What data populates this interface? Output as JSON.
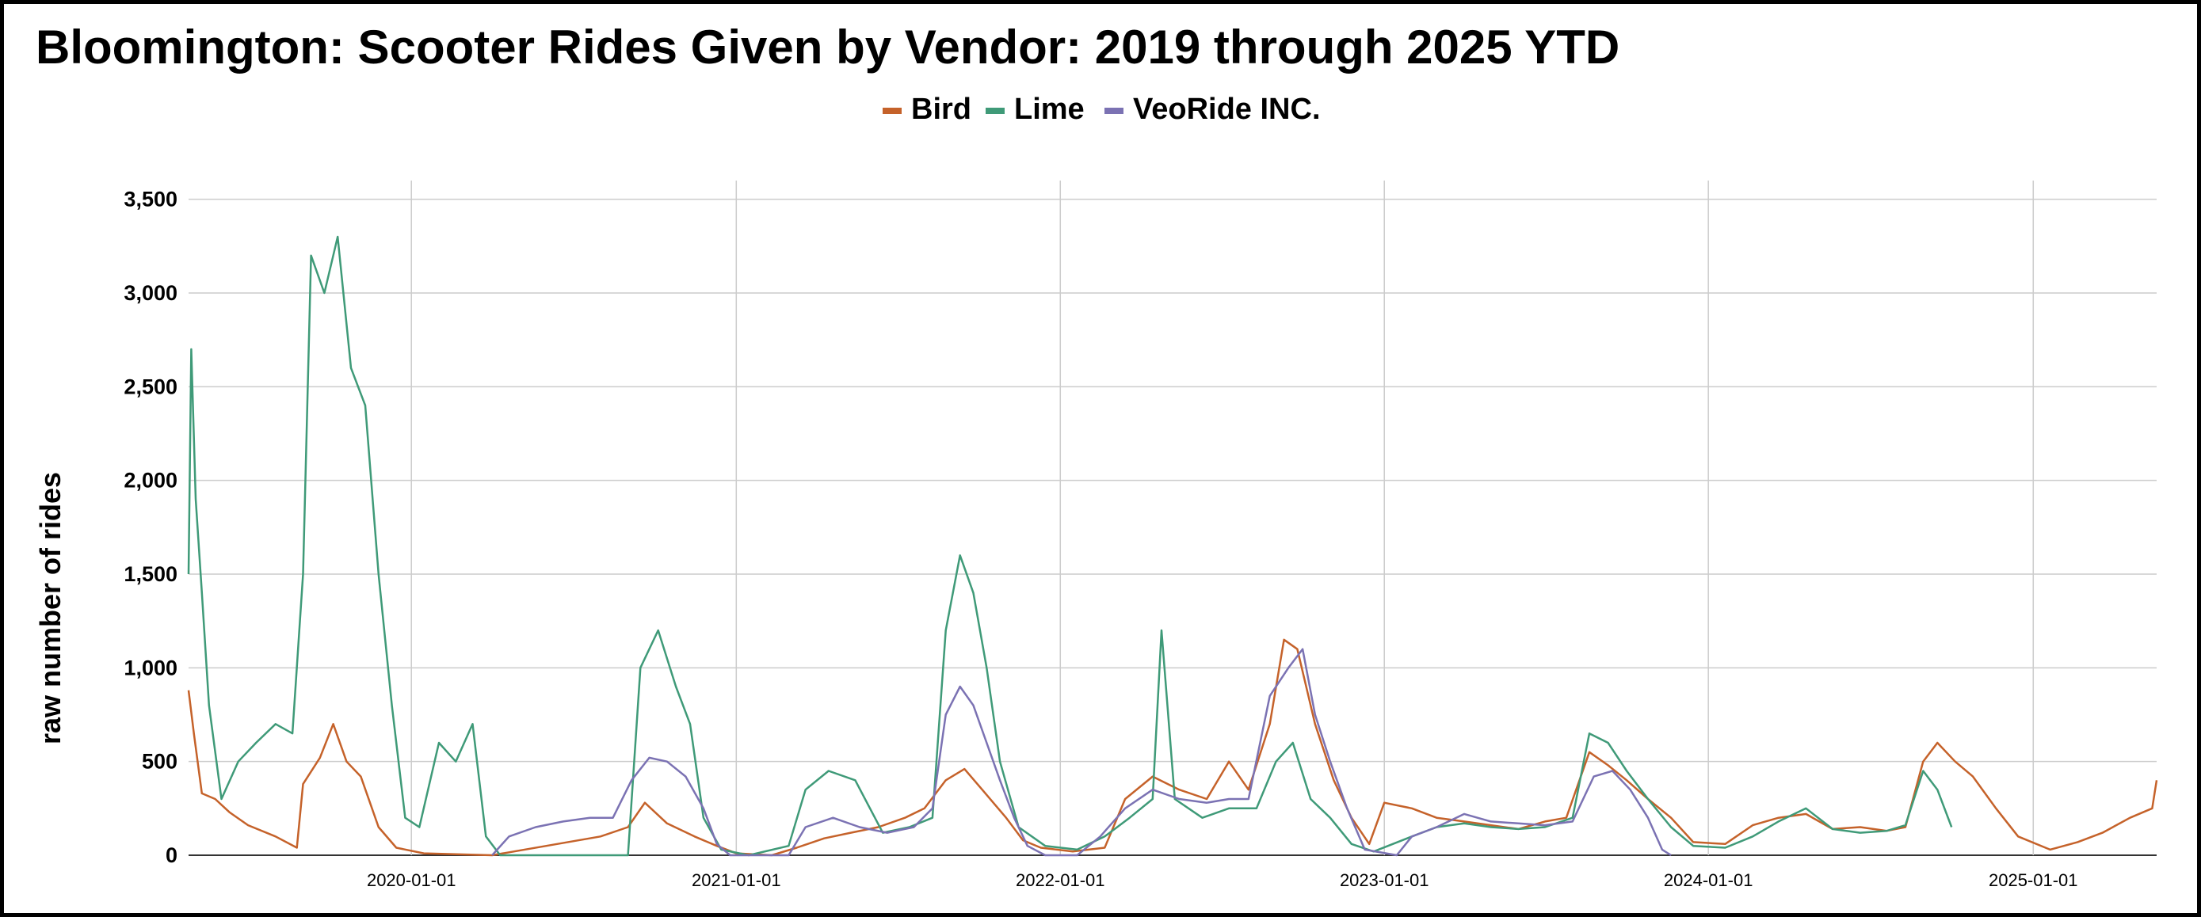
{
  "chart_data": {
    "type": "line",
    "title": "Bloomington: Scooter Rides Given by Vendor: 2019 through 2025 YTD",
    "xlabel": "",
    "ylabel": "raw number of rides",
    "x_tick_labels": [
      "2020-01-01",
      "2021-01-01",
      "2022-01-01",
      "2023-01-01",
      "2024-01-01",
      "2025-01-01"
    ],
    "y_tick_labels": [
      "0",
      "500",
      "1,000",
      "1,500",
      "2,000",
      "2,500",
      "3,000",
      "3,500"
    ],
    "ylim": [
      0,
      3600
    ],
    "xlim": [
      "2019-04-25",
      "2025-05-20"
    ],
    "grid": true,
    "legend_position": "top",
    "series": [
      {
        "name": "Bird",
        "color": "#c5622a",
        "points": [
          [
            "2019-04-25",
            880
          ],
          [
            "2019-05-01",
            650
          ],
          [
            "2019-05-10",
            330
          ],
          [
            "2019-05-25",
            300
          ],
          [
            "2019-06-10",
            230
          ],
          [
            "2019-07-01",
            160
          ],
          [
            "2019-08-01",
            100
          ],
          [
            "2019-08-25",
            40
          ],
          [
            "2019-09-01",
            380
          ],
          [
            "2019-09-20",
            520
          ],
          [
            "2019-10-05",
            700
          ],
          [
            "2019-10-20",
            500
          ],
          [
            "2019-11-05",
            420
          ],
          [
            "2019-11-25",
            150
          ],
          [
            "2019-12-15",
            40
          ],
          [
            "2020-01-15",
            10
          ],
          [
            "2020-04-01",
            0
          ],
          [
            "2020-06-01",
            50
          ],
          [
            "2020-08-01",
            100
          ],
          [
            "2020-09-01",
            150
          ],
          [
            "2020-09-20",
            280
          ],
          [
            "2020-10-15",
            170
          ],
          [
            "2020-11-15",
            100
          ],
          [
            "2020-12-10",
            50
          ],
          [
            "2021-01-01",
            10
          ],
          [
            "2021-02-10",
            0
          ],
          [
            "2021-03-10",
            40
          ],
          [
            "2021-04-10",
            90
          ],
          [
            "2021-05-10",
            120
          ],
          [
            "2021-06-10",
            150
          ],
          [
            "2021-07-10",
            200
          ],
          [
            "2021-08-01",
            250
          ],
          [
            "2021-08-25",
            400
          ],
          [
            "2021-09-15",
            460
          ],
          [
            "2021-10-05",
            350
          ],
          [
            "2021-11-01",
            200
          ],
          [
            "2021-11-20",
            80
          ],
          [
            "2021-12-10",
            40
          ],
          [
            "2022-01-15",
            20
          ],
          [
            "2022-02-20",
            40
          ],
          [
            "2022-03-15",
            300
          ],
          [
            "2022-04-15",
            420
          ],
          [
            "2022-05-15",
            350
          ],
          [
            "2022-06-15",
            300
          ],
          [
            "2022-07-10",
            500
          ],
          [
            "2022-08-01",
            350
          ],
          [
            "2022-08-25",
            700
          ],
          [
            "2022-09-10",
            1150
          ],
          [
            "2022-09-25",
            1100
          ],
          [
            "2022-10-15",
            700
          ],
          [
            "2022-11-05",
            400
          ],
          [
            "2022-11-25",
            200
          ],
          [
            "2022-12-15",
            60
          ],
          [
            "2023-01-01",
            280
          ],
          [
            "2023-02-01",
            250
          ],
          [
            "2023-03-01",
            200
          ],
          [
            "2023-04-01",
            180
          ],
          [
            "2023-05-01",
            160
          ],
          [
            "2023-06-01",
            140
          ],
          [
            "2023-07-01",
            180
          ],
          [
            "2023-07-25",
            200
          ],
          [
            "2023-08-20",
            550
          ],
          [
            "2023-09-10",
            480
          ],
          [
            "2023-10-01",
            400
          ],
          [
            "2023-10-25",
            300
          ],
          [
            "2023-11-20",
            200
          ],
          [
            "2023-12-15",
            70
          ],
          [
            "2024-01-20",
            60
          ],
          [
            "2024-02-20",
            160
          ],
          [
            "2024-03-20",
            200
          ],
          [
            "2024-04-20",
            220
          ],
          [
            "2024-05-20",
            140
          ],
          [
            "2024-06-20",
            150
          ],
          [
            "2024-07-20",
            130
          ],
          [
            "2024-08-10",
            150
          ],
          [
            "2024-08-30",
            500
          ],
          [
            "2024-09-15",
            600
          ],
          [
            "2024-10-05",
            500
          ],
          [
            "2024-10-25",
            420
          ],
          [
            "2024-11-20",
            250
          ],
          [
            "2024-12-15",
            100
          ],
          [
            "2025-01-20",
            30
          ],
          [
            "2025-02-20",
            70
          ],
          [
            "2025-03-20",
            120
          ],
          [
            "2025-04-20",
            200
          ],
          [
            "2025-05-15",
            250
          ],
          [
            "2025-05-20",
            400
          ]
        ]
      },
      {
        "name": "Lime",
        "color": "#3f9a78",
        "points": [
          [
            "2019-04-25",
            1500
          ],
          [
            "2019-04-28",
            2700
          ],
          [
            "2019-05-03",
            1900
          ],
          [
            "2019-05-10",
            1400
          ],
          [
            "2019-05-18",
            800
          ],
          [
            "2019-06-01",
            300
          ],
          [
            "2019-06-20",
            500
          ],
          [
            "2019-07-10",
            600
          ],
          [
            "2019-08-01",
            700
          ],
          [
            "2019-08-20",
            650
          ],
          [
            "2019-09-01",
            1500
          ],
          [
            "2019-09-10",
            3200
          ],
          [
            "2019-09-25",
            3000
          ],
          [
            "2019-10-10",
            3300
          ],
          [
            "2019-10-25",
            2600
          ],
          [
            "2019-11-10",
            2400
          ],
          [
            "2019-11-25",
            1500
          ],
          [
            "2019-12-10",
            800
          ],
          [
            "2019-12-25",
            200
          ],
          [
            "2020-01-10",
            150
          ],
          [
            "2020-02-01",
            600
          ],
          [
            "2020-02-20",
            500
          ],
          [
            "2020-03-10",
            700
          ],
          [
            "2020-03-25",
            100
          ],
          [
            "2020-04-10",
            0
          ],
          [
            "2020-09-01",
            0
          ],
          [
            "2020-09-15",
            1000
          ],
          [
            "2020-10-05",
            1200
          ],
          [
            "2020-10-25",
            900
          ],
          [
            "2020-11-10",
            700
          ],
          [
            "2020-11-25",
            200
          ],
          [
            "2020-12-15",
            30
          ],
          [
            "2021-01-15",
            0
          ],
          [
            "2021-03-01",
            50
          ],
          [
            "2021-03-20",
            350
          ],
          [
            "2021-04-15",
            450
          ],
          [
            "2021-05-15",
            400
          ],
          [
            "2021-06-15",
            120
          ],
          [
            "2021-07-15",
            150
          ],
          [
            "2021-08-10",
            200
          ],
          [
            "2021-08-25",
            1200
          ],
          [
            "2021-09-10",
            1600
          ],
          [
            "2021-09-25",
            1400
          ],
          [
            "2021-10-10",
            1000
          ],
          [
            "2021-10-25",
            500
          ],
          [
            "2021-11-15",
            150
          ],
          [
            "2021-12-15",
            50
          ],
          [
            "2022-01-20",
            30
          ],
          [
            "2022-02-20",
            100
          ],
          [
            "2022-03-20",
            200
          ],
          [
            "2022-04-15",
            300
          ],
          [
            "2022-04-25",
            1200
          ],
          [
            "2022-05-10",
            300
          ],
          [
            "2022-06-10",
            200
          ],
          [
            "2022-07-10",
            250
          ],
          [
            "2022-08-10",
            250
          ],
          [
            "2022-09-01",
            500
          ],
          [
            "2022-09-20",
            600
          ],
          [
            "2022-10-10",
            300
          ],
          [
            "2022-11-01",
            200
          ],
          [
            "2022-11-25",
            60
          ],
          [
            "2022-12-20",
            20
          ],
          [
            "2023-02-01",
            100
          ],
          [
            "2023-03-01",
            150
          ],
          [
            "2023-04-01",
            170
          ],
          [
            "2023-05-01",
            150
          ],
          [
            "2023-06-01",
            140
          ],
          [
            "2023-07-01",
            150
          ],
          [
            "2023-08-01",
            200
          ],
          [
            "2023-08-20",
            650
          ],
          [
            "2023-09-10",
            600
          ],
          [
            "2023-10-01",
            450
          ],
          [
            "2023-10-25",
            300
          ],
          [
            "2023-11-20",
            150
          ],
          [
            "2023-12-15",
            50
          ],
          [
            "2024-01-20",
            40
          ],
          [
            "2024-02-20",
            100
          ],
          [
            "2024-03-20",
            180
          ],
          [
            "2024-04-20",
            250
          ],
          [
            "2024-05-20",
            140
          ],
          [
            "2024-06-20",
            120
          ],
          [
            "2024-07-20",
            130
          ],
          [
            "2024-08-10",
            160
          ],
          [
            "2024-08-30",
            450
          ],
          [
            "2024-09-15",
            350
          ],
          [
            "2024-10-01",
            150
          ]
        ]
      },
      {
        "name": "VeoRide INC.",
        "color": "#7b72b3",
        "points": [
          [
            "2020-04-01",
            0
          ],
          [
            "2020-04-20",
            100
          ],
          [
            "2020-05-20",
            150
          ],
          [
            "2020-06-20",
            180
          ],
          [
            "2020-07-20",
            200
          ],
          [
            "2020-08-15",
            200
          ],
          [
            "2020-09-05",
            400
          ],
          [
            "2020-09-25",
            520
          ],
          [
            "2020-10-15",
            500
          ],
          [
            "2020-11-05",
            420
          ],
          [
            "2020-11-25",
            250
          ],
          [
            "2020-12-10",
            60
          ],
          [
            "2020-12-25",
            0
          ],
          [
            "2021-03-01",
            0
          ],
          [
            "2021-03-20",
            150
          ],
          [
            "2021-04-20",
            200
          ],
          [
            "2021-05-20",
            150
          ],
          [
            "2021-06-20",
            120
          ],
          [
            "2021-07-20",
            150
          ],
          [
            "2021-08-10",
            250
          ],
          [
            "2021-08-25",
            750
          ],
          [
            "2021-09-10",
            900
          ],
          [
            "2021-09-25",
            800
          ],
          [
            "2021-10-10",
            600
          ],
          [
            "2021-10-25",
            400
          ],
          [
            "2021-11-10",
            200
          ],
          [
            "2021-11-25",
            50
          ],
          [
            "2021-12-15",
            0
          ],
          [
            "2022-01-20",
            0
          ],
          [
            "2022-02-15",
            100
          ],
          [
            "2022-03-15",
            250
          ],
          [
            "2022-04-15",
            350
          ],
          [
            "2022-05-15",
            300
          ],
          [
            "2022-06-15",
            280
          ],
          [
            "2022-07-10",
            300
          ],
          [
            "2022-08-01",
            300
          ],
          [
            "2022-08-25",
            850
          ],
          [
            "2022-09-15",
            1000
          ],
          [
            "2022-10-01",
            1100
          ],
          [
            "2022-10-15",
            750
          ],
          [
            "2022-11-01",
            500
          ],
          [
            "2022-11-20",
            250
          ],
          [
            "2022-12-10",
            30
          ],
          [
            "2023-01-15",
            0
          ],
          [
            "2023-02-01",
            100
          ],
          [
            "2023-03-01",
            150
          ],
          [
            "2023-04-01",
            220
          ],
          [
            "2023-05-01",
            180
          ],
          [
            "2023-06-01",
            170
          ],
          [
            "2023-07-01",
            160
          ],
          [
            "2023-08-01",
            180
          ],
          [
            "2023-08-25",
            420
          ],
          [
            "2023-09-15",
            450
          ],
          [
            "2023-10-05",
            350
          ],
          [
            "2023-10-25",
            200
          ],
          [
            "2023-11-10",
            30
          ],
          [
            "2023-11-20",
            0
          ]
        ]
      }
    ]
  }
}
